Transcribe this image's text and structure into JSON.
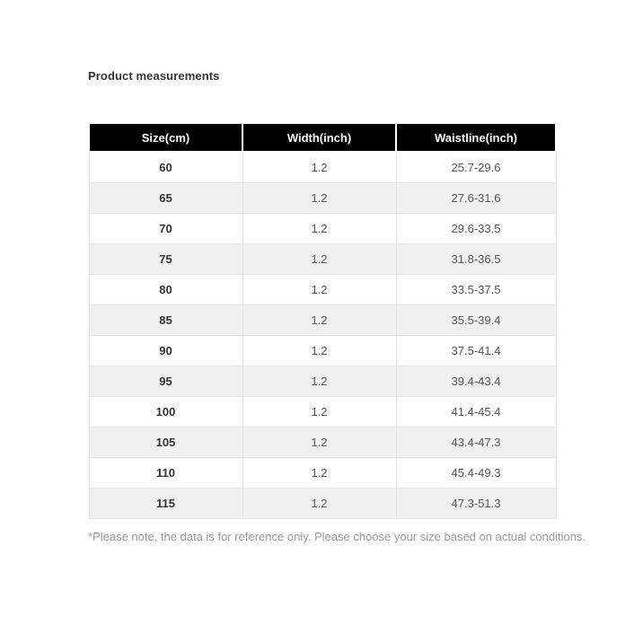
{
  "page": {
    "title": "Product measurements",
    "footnote": "*Please note, the data is for reference only. Please choose your size based on actual conditions."
  },
  "table": {
    "columns": [
      "Size(cm)",
      "Width(inch)",
      "Waistline(inch)"
    ],
    "rows": [
      {
        "size": "60",
        "width": "1.2",
        "waistline": "25.7-29.6"
      },
      {
        "size": "65",
        "width": "1.2",
        "waistline": "27.6-31.6"
      },
      {
        "size": "70",
        "width": "1.2",
        "waistline": "29.6-33.5"
      },
      {
        "size": "75",
        "width": "1.2",
        "waistline": "31.8-36.5"
      },
      {
        "size": "80",
        "width": "1.2",
        "waistline": "33.5-37.5"
      },
      {
        "size": "85",
        "width": "1.2",
        "waistline": "35.5-39.4"
      },
      {
        "size": "90",
        "width": "1.2",
        "waistline": "37.5-41.4"
      },
      {
        "size": "95",
        "width": "1.2",
        "waistline": "39.4-43.4"
      },
      {
        "size": "100",
        "width": "1.2",
        "waistline": "41.4-45.4"
      },
      {
        "size": "105",
        "width": "1.2",
        "waistline": "43.4-47.3"
      },
      {
        "size": "110",
        "width": "1.2",
        "waistline": "45.4-49.3"
      },
      {
        "size": "115",
        "width": "1.2",
        "waistline": "47.3-51.3"
      }
    ]
  },
  "colors": {
    "header_bg": "#000000",
    "header_text": "#ffffff",
    "row_alt_bg": "#f0f0f0",
    "border": "#e5e5e5",
    "text_primary": "#333333",
    "text_secondary": "#555555",
    "footnote_text": "#9b9b9b"
  }
}
